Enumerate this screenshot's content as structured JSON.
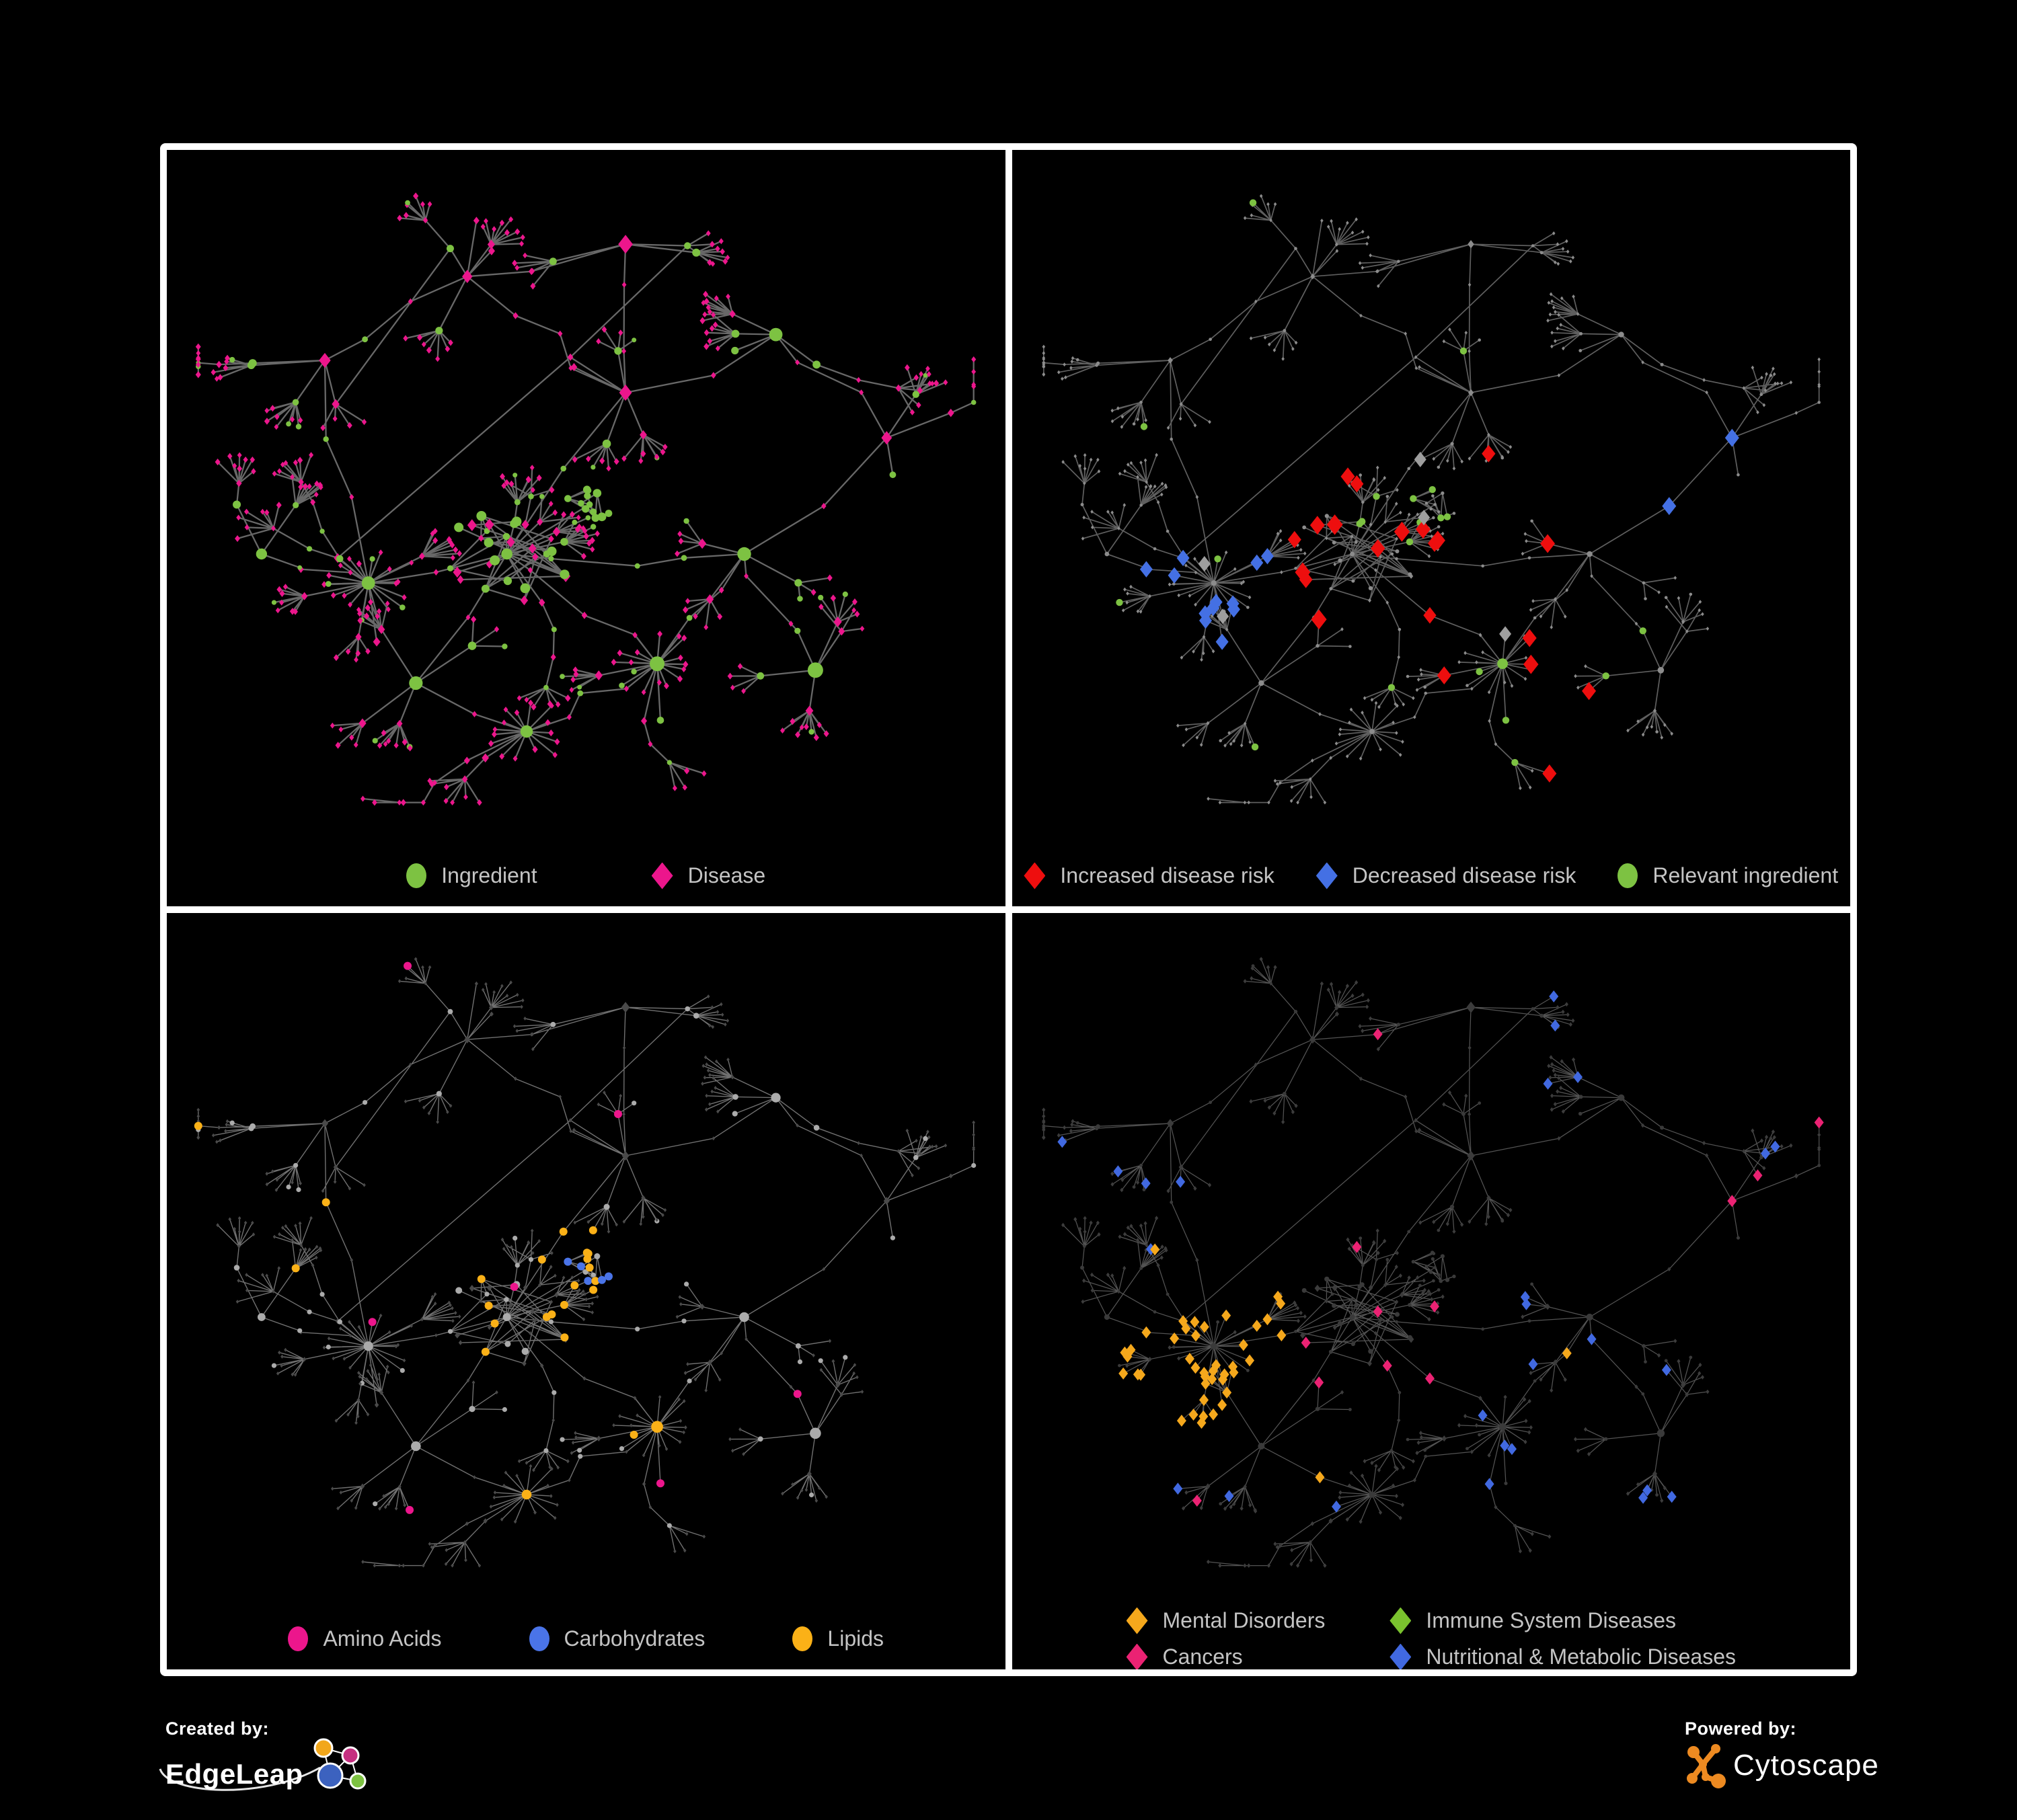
{
  "figure_note": "Four-panel figure; all panels show the same ingredient-disease network layout with different node colorings",
  "footer": {
    "created_by": {
      "label": "Created by:",
      "brand": "EdgeLeap"
    },
    "powered_by": {
      "label": "Powered by:",
      "brand": "Cytoscape"
    }
  },
  "brand_colors": {
    "edgeleap_orange": "#F2A71B",
    "edgeleap_magenta": "#C52F80",
    "edgeleap_blue": "#3C62BF",
    "edgeleap_green": "#7DC242",
    "cytoscape_orange": "#ED8A21"
  },
  "chart_data": [
    {
      "type": "network",
      "panel": "top-left",
      "name": "ingredient-disease-network",
      "shared_layout": true,
      "approx_node_count": 650,
      "approx_edge_count": 700,
      "legend": [
        {
          "label": "Ingredient",
          "shape": "circle",
          "color": "#7DC242"
        },
        {
          "label": "Disease",
          "shape": "diamond",
          "color": "#EC168C"
        }
      ],
      "edge": {
        "color": "#6E6E6E",
        "width": 2.3,
        "opacity": 0.95
      }
    },
    {
      "type": "network",
      "panel": "top-right",
      "name": "disease-risk-network",
      "shared_layout": true,
      "legend": [
        {
          "label": "Increased disease risk",
          "shape": "diamond",
          "color": "#EE0E0E"
        },
        {
          "label": "Decreased disease risk",
          "shape": "diamond",
          "color": "#4470E4"
        },
        {
          "label": "Relevant ingredient",
          "shape": "circle",
          "color": "#7DC242"
        }
      ],
      "unlabeled_category_color": "#9E9E9E",
      "base_node_color": "#8C8C8C",
      "edge": {
        "color": "#646464",
        "width": 1.7,
        "opacity": 0.95
      }
    },
    {
      "type": "network",
      "panel": "bottom-left",
      "name": "nutrient-class-network",
      "shared_layout": true,
      "legend": [
        {
          "label": "Amino Acids",
          "shape": "circle",
          "color": "#EC168C"
        },
        {
          "label": "Carbohydrates",
          "shape": "circle",
          "color": "#4A74E8"
        },
        {
          "label": "Lipids",
          "shape": "circle",
          "color": "#FBB117"
        }
      ],
      "base_node_colors": {
        "ingredient": "#ABABAB",
        "disease": "#4A4A4A"
      },
      "edge": {
        "color": "#969696",
        "width": 1.4,
        "opacity": 0.75
      }
    },
    {
      "type": "network",
      "panel": "bottom-right",
      "name": "disease-class-network",
      "shared_layout": true,
      "legend_columns": 2,
      "legend": [
        {
          "label": "Mental Disorders",
          "shape": "diamond",
          "color": "#F5A81C"
        },
        {
          "label": "Immune System Diseases",
          "shape": "diamond",
          "color": "#7AC22E"
        },
        {
          "label": "Cancers",
          "shape": "diamond",
          "color": "#EB2273"
        },
        {
          "label": "Nutritional & Metabolic Diseases",
          "shape": "diamond",
          "color": "#4169E1"
        }
      ],
      "base_node_color": "#3C3C3C",
      "edge": {
        "color": "#808080",
        "width": 1.25,
        "opacity": 0.65
      }
    }
  ]
}
